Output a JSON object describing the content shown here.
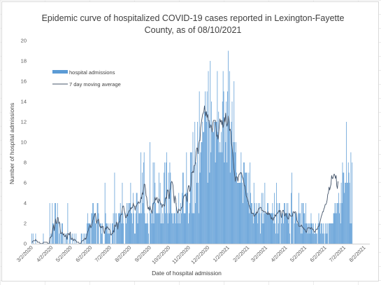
{
  "chart_data": {
    "type": "bar",
    "title_lines": [
      "Epidemic curve of hospitalized COVID-19 cases reported in Lexington-Fayette",
      "County, as of 08/10/2021"
    ],
    "xlabel": "Date of hospital admission",
    "ylabel": "Number of hospital admissions",
    "ylim": [
      0,
      20
    ],
    "yticks": [
      0,
      2,
      4,
      6,
      8,
      10,
      12,
      14,
      16,
      18,
      20
    ],
    "x_start": "3/2/2020",
    "x_end": "8/10/2021",
    "xtick_labels": [
      "3/2/2020",
      "4/2/2020",
      "5/2/2020",
      "6/2/2020",
      "7/2/2020",
      "8/2/2020",
      "9/2/2020",
      "10/2/2020",
      "11/2/2020",
      "12/2/2020",
      "1/2/2021",
      "2/2/2021",
      "3/2/2021",
      "4/2/2021",
      "5/2/2021",
      "6/2/2021",
      "7/2/2021",
      "8/2/2021"
    ],
    "legend_placement": "top-left",
    "grid": false,
    "series": [
      {
        "name": "hospital admissions",
        "kind": "bar",
        "color": "#5b9bd5",
        "values": [
          1,
          0,
          1,
          0,
          0,
          0,
          1,
          0,
          0,
          0,
          0,
          0,
          0,
          0,
          0,
          0,
          0,
          0,
          1,
          0,
          0,
          0,
          0,
          0,
          0,
          0,
          0,
          0,
          4,
          0,
          1,
          0,
          4,
          2,
          2,
          0,
          4,
          4,
          2,
          2,
          4,
          2,
          0,
          1,
          2,
          0,
          1,
          2,
          2,
          0,
          1,
          0,
          0,
          1,
          1,
          0,
          4,
          0,
          0,
          1,
          1,
          0,
          0,
          1,
          0,
          0,
          1,
          0,
          0,
          1,
          0,
          0,
          0,
          0,
          0,
          0,
          0,
          1,
          1,
          0,
          0,
          1,
          0,
          1,
          0,
          1,
          2,
          3,
          2,
          2,
          2,
          2,
          0,
          3,
          3,
          4,
          4,
          3,
          3,
          2,
          2,
          0,
          4,
          4,
          3,
          0,
          0,
          2,
          2,
          1,
          2,
          0,
          0,
          0,
          6,
          3,
          2,
          2,
          1,
          2,
          1,
          1,
          2,
          0,
          0,
          2,
          2,
          3,
          0,
          7,
          3,
          0,
          3,
          2,
          2,
          3,
          3,
          3,
          4,
          3,
          2,
          6,
          3,
          2,
          0,
          0,
          3,
          2,
          4,
          3,
          4,
          3,
          4,
          4,
          6,
          3,
          3,
          2,
          5,
          3,
          1,
          1,
          3,
          5,
          5,
          2,
          4,
          3,
          3,
          3,
          9,
          3,
          7,
          4,
          8,
          9,
          3,
          2,
          2,
          2,
          3,
          2,
          1,
          0,
          10,
          3,
          3,
          2,
          4,
          8,
          2,
          8,
          6,
          4,
          3,
          3,
          3,
          3,
          7,
          3,
          6,
          2,
          4,
          2,
          3,
          2,
          7,
          8,
          3,
          8,
          9,
          3,
          2,
          7,
          3,
          8,
          7,
          6,
          3,
          3,
          2,
          3,
          3,
          3,
          2,
          4,
          3,
          3,
          2,
          5,
          3,
          2,
          4,
          3,
          5,
          7,
          7,
          3,
          3,
          3,
          5,
          9,
          5,
          5,
          2,
          3,
          4,
          9,
          9,
          9,
          3,
          11,
          3,
          3,
          12,
          4,
          8,
          6,
          12,
          6,
          3,
          15,
          7,
          9,
          10,
          10,
          12,
          11,
          11,
          13,
          15,
          13,
          12,
          15,
          6,
          17,
          12,
          7,
          18,
          9,
          14,
          11,
          11,
          11,
          12,
          12,
          8,
          12,
          12,
          17,
          11,
          13,
          9,
          10,
          9,
          11,
          9,
          14,
          17,
          15,
          8,
          12,
          10,
          14,
          8,
          15,
          19,
          12,
          17,
          7,
          11,
          12,
          14,
          9,
          10,
          16,
          10,
          9,
          10,
          7,
          6,
          6,
          6,
          6,
          6,
          6,
          9,
          7,
          6,
          4,
          8,
          8,
          7,
          7,
          7,
          7,
          5,
          4,
          7,
          3,
          8,
          5,
          4,
          4,
          3,
          2,
          6,
          4,
          3,
          3,
          4,
          3,
          2,
          4,
          3,
          4,
          1,
          3,
          5,
          2,
          5,
          2,
          3,
          6,
          3,
          3,
          3,
          4,
          4,
          3,
          3,
          3,
          3,
          3,
          3,
          4,
          3,
          2,
          5,
          2,
          1,
          6,
          4,
          1,
          2,
          4,
          4,
          0,
          3,
          2,
          3,
          3,
          2,
          4,
          4,
          3,
          3,
          4,
          3,
          4,
          2,
          3,
          1,
          0,
          5,
          7,
          3,
          3,
          0,
          2,
          3,
          3,
          3,
          2,
          2,
          3,
          5,
          3,
          3,
          1,
          4,
          1,
          4,
          4,
          3,
          3,
          2,
          4,
          2,
          2,
          1,
          2,
          2,
          1,
          2,
          3,
          2,
          2,
          1,
          2,
          1,
          1,
          2,
          1,
          1,
          0,
          2,
          3,
          2,
          2,
          1,
          2,
          2,
          1,
          2,
          1,
          0,
          2,
          1,
          2,
          1,
          2,
          0,
          2,
          2,
          2,
          2,
          2,
          2,
          2,
          3,
          3,
          4,
          3,
          4,
          3,
          4,
          4,
          5,
          3,
          4,
          2,
          6,
          4,
          8,
          7,
          7,
          5,
          6,
          6,
          12,
          6,
          6,
          8,
          7,
          6,
          2,
          9,
          2,
          8
        ]
      },
      {
        "name": "7 day moving average",
        "kind": "line",
        "color": "#44546a",
        "values": [
          0.14,
          0.14,
          0.29,
          0.29,
          0.29,
          0.29,
          0.43,
          0.29,
          0.29,
          0.14,
          0.14,
          0.14,
          0.14,
          0.0,
          0.0,
          0.0,
          0.0,
          0.0,
          0.14,
          0.14,
          0.14,
          0.14,
          0.14,
          0.14,
          0.14,
          0.0,
          0.0,
          0.0,
          0.57,
          0.57,
          0.71,
          0.71,
          1.29,
          1.57,
          1.86,
          1.29,
          1.86,
          2.43,
          2.0,
          2.0,
          2.57,
          2.57,
          2.0,
          2.14,
          1.57,
          1.0,
          1.0,
          1.14,
          1.0,
          0.86,
          1.0,
          0.71,
          0.71,
          0.86,
          0.71,
          0.43,
          1.0,
          1.0,
          0.86,
          1.0,
          1.14,
          0.43,
          0.43,
          0.57,
          0.43,
          0.29,
          0.43,
          0.43,
          0.29,
          0.29,
          0.14,
          0.14,
          0.14,
          0.14,
          0.0,
          0.0,
          0.0,
          0.14,
          0.29,
          0.29,
          0.29,
          0.43,
          0.43,
          0.57,
          0.43,
          0.57,
          0.86,
          1.14,
          1.29,
          1.57,
          1.71,
          1.86,
          1.57,
          1.71,
          2.0,
          2.29,
          2.57,
          2.71,
          2.86,
          3.0,
          2.43,
          2.0,
          2.29,
          2.29,
          2.43,
          2.0,
          1.71,
          1.57,
          1.71,
          1.57,
          1.71,
          1.71,
          1.29,
          1.0,
          1.29,
          1.57,
          1.43,
          1.71,
          1.57,
          1.57,
          1.43,
          1.43,
          1.29,
          0.86,
          0.86,
          1.0,
          1.0,
          1.29,
          1.14,
          1.86,
          1.71,
          1.71,
          2.14,
          2.0,
          1.43,
          2.0,
          2.14,
          2.14,
          2.71,
          2.86,
          2.86,
          3.43,
          3.71,
          3.71,
          3.29,
          3.0,
          2.57,
          2.57,
          2.86,
          2.71,
          3.0,
          3.14,
          3.29,
          3.29,
          3.57,
          3.43,
          3.57,
          3.57,
          4.0,
          3.71,
          3.71,
          3.29,
          3.71,
          3.71,
          3.86,
          4.0,
          4.14,
          4.0,
          4.0,
          4.14,
          4.57,
          4.43,
          5.0,
          4.86,
          5.29,
          5.86,
          5.86,
          5.43,
          4.71,
          4.57,
          3.86,
          3.43,
          3.57,
          3.29,
          3.71,
          3.43,
          3.29,
          3.0,
          3.29,
          3.86,
          4.0,
          4.14,
          4.57,
          4.29,
          4.43,
          4.57,
          4.14,
          4.0,
          4.43,
          4.29,
          4.14,
          3.86,
          3.86,
          3.57,
          3.86,
          3.86,
          3.71,
          3.71,
          4.43,
          4.57,
          4.43,
          5.29,
          5.29,
          5.0,
          4.43,
          5.29,
          5.43,
          6.0,
          6.14,
          6.0,
          5.71,
          4.71,
          4.0,
          4.71,
          4.43,
          3.71,
          3.29,
          3.0,
          3.14,
          3.43,
          3.29,
          3.29,
          3.29,
          3.57,
          3.57,
          3.71,
          4.43,
          4.71,
          4.71,
          4.86,
          4.71,
          4.43,
          4.14,
          5.29,
          5.71,
          5.71,
          5.14,
          5.29,
          5.71,
          7.0,
          7.0,
          7.14,
          7.0,
          7.71,
          7.71,
          8.0,
          9.0,
          9.43,
          9.43,
          8.86,
          9.86,
          10.14,
          10.14,
          11.43,
          11.86,
          12.29,
          12.71,
          12.86,
          13.0,
          13.57,
          13.0,
          12.57,
          13.0,
          12.43,
          12.71,
          12.14,
          12.14,
          11.43,
          11.43,
          11.71,
          11.43,
          11.0,
          11.86,
          12.14,
          12.14,
          12.14,
          12.14,
          11.29,
          10.57,
          10.71,
          10.29,
          10.71,
          11.57,
          12.29,
          12.0,
          12.14,
          11.71,
          12.14,
          11.43,
          11.71,
          12.43,
          12.0,
          12.86,
          12.0,
          11.57,
          11.86,
          12.57,
          12.0,
          11.14,
          11.29,
          11.0,
          9.86,
          9.57,
          8.86,
          8.0,
          7.29,
          6.71,
          6.14,
          6.57,
          6.57,
          6.57,
          6.14,
          6.57,
          6.86,
          6.86,
          7.0,
          7.0,
          6.86,
          6.57,
          6.43,
          6.14,
          5.71,
          5.71,
          5.29,
          4.71,
          4.57,
          4.43,
          4.14,
          3.86,
          3.71,
          3.43,
          3.43,
          3.0,
          3.0,
          3.0,
          3.0,
          2.71,
          2.71,
          2.86,
          2.86,
          3.14,
          3.0,
          3.14,
          3.43,
          3.43,
          3.57,
          3.57,
          3.57,
          3.29,
          3.29,
          3.29,
          3.14,
          3.14,
          3.14,
          3.14,
          3.0,
          3.0,
          2.86,
          3.14,
          2.86,
          3.0,
          2.86,
          2.71,
          2.43,
          2.57,
          2.43,
          2.29,
          2.57,
          2.57,
          2.86,
          2.71,
          2.86,
          3.0,
          3.0,
          3.14,
          3.29,
          3.14,
          3.29,
          2.71,
          2.57,
          3.14,
          3.29,
          3.29,
          3.0,
          2.71,
          2.86,
          3.0,
          2.71,
          2.57,
          2.43,
          2.43,
          3.0,
          2.86,
          2.71,
          2.71,
          2.71,
          2.71,
          3.14,
          3.14,
          3.0,
          3.14,
          3.14,
          2.86,
          2.29,
          2.14,
          2.0,
          1.71,
          1.71,
          1.71,
          1.71,
          1.86,
          1.71,
          1.57,
          1.57,
          1.43,
          1.43,
          1.29,
          1.14,
          1.14,
          1.43,
          1.57,
          1.57,
          1.57,
          1.57,
          1.43,
          1.57,
          1.57,
          1.43,
          1.43,
          1.29,
          1.14,
          1.14,
          1.29,
          1.43,
          1.43,
          1.43,
          1.71,
          1.71,
          1.86,
          2.14,
          2.43,
          2.71,
          2.86,
          3.14,
          3.14,
          3.43,
          3.57,
          3.86,
          3.86,
          4.0,
          4.29,
          4.86,
          5.0,
          5.57,
          5.29,
          5.57,
          5.86,
          6.71,
          6.43,
          6.43,
          6.71,
          6.86,
          6.71,
          6.43,
          6.71,
          5.71,
          5.43,
          6.14
        ]
      }
    ]
  }
}
